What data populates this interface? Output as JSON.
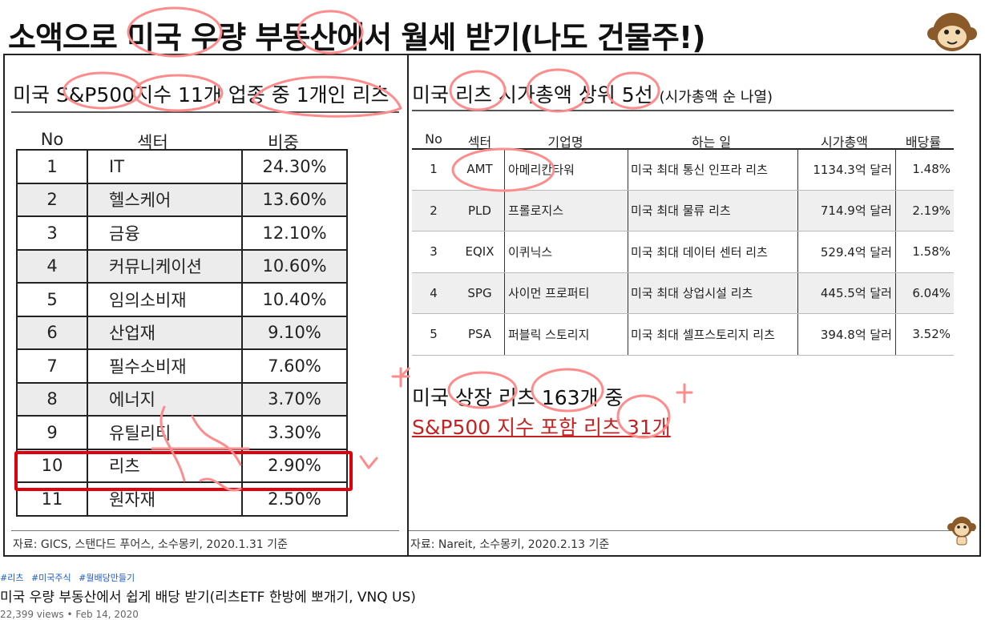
{
  "slide_title": "소액으로 미국 우량 부동산에서 월세 받기(나도 건물주!)",
  "left": {
    "title": "미국 S&P500지수 11개 업종 중 1개인 리츠",
    "headers": [
      "No",
      "섹터",
      "비중"
    ],
    "rows": [
      [
        "1",
        "IT",
        "24.30%"
      ],
      [
        "2",
        "헬스케어",
        "13.60%"
      ],
      [
        "3",
        "금융",
        "12.10%"
      ],
      [
        "4",
        "커뮤니케이션",
        "10.60%"
      ],
      [
        "5",
        "임의소비재",
        "10.40%"
      ],
      [
        "6",
        "산업재",
        "9.10%"
      ],
      [
        "7",
        "필수소비재",
        "7.60%"
      ],
      [
        "8",
        "에너지",
        "3.70%"
      ],
      [
        "9",
        "유틸리티",
        "3.30%"
      ],
      [
        "10",
        "리츠",
        "2.90%"
      ],
      [
        "11",
        "원자재",
        "2.50%"
      ]
    ],
    "source": "자료: GICS, 스탠다드 푸어스, 소수몽키, 2020.1.31 기준"
  },
  "right": {
    "title": "미국 리츠 시가총액 상위 5선",
    "title_small": "(시가총액 순 나열)",
    "headers": [
      "No",
      "섹터",
      "기업명",
      "하는 일",
      "시가총액",
      "배당률"
    ],
    "rows": [
      [
        "1",
        "AMT",
        "아메리칸타워",
        "미국 최대 통신 인프라 리츠",
        "1134.3억 달러",
        "1.48%"
      ],
      [
        "2",
        "PLD",
        "프롤로지스",
        "미국 최대 물류 리츠",
        "714.9억 달러",
        "2.19%"
      ],
      [
        "3",
        "EQIX",
        "이퀴닉스",
        "미국 최대 데이터 센터 리츠",
        "529.4억 달러",
        "1.58%"
      ],
      [
        "4",
        "SPG",
        "사이먼 프로퍼티",
        "미국 최대 상업시설 리츠",
        "445.5억 달러",
        "6.04%"
      ],
      [
        "5",
        "PSA",
        "퍼블릭 스토리지",
        "미국 최대 셀프스토리지 리츠",
        "394.8억 달러",
        "3.52%"
      ]
    ],
    "note1": "미국 상장 리츠 163개 중",
    "note2": "S&P500 지수 포함 리츠 31개",
    "source": "자료: Nareit, 소수몽키, 2020.2.13 기준"
  },
  "tags": [
    "#리츠",
    "#미국주식",
    "#월배당만들기"
  ],
  "video_title": "미국 우량 부동산에서 쉽게 배당 받기(리츠ETF 한방에 뽀개기, VNQ US)",
  "meta": "22,399 views • Feb 14, 2020",
  "colors": {
    "highlight_box": "#e0000d",
    "annotation": "#ff8c8c",
    "tag_link": "#1a5bcc"
  }
}
